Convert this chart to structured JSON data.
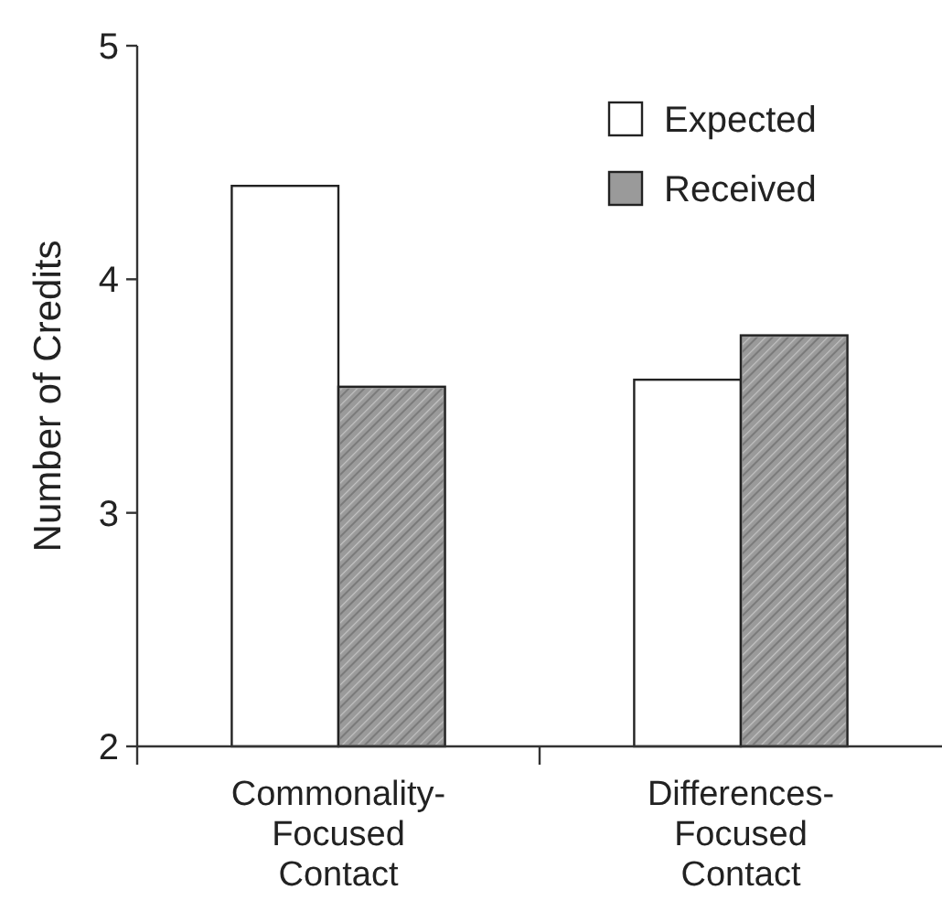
{
  "chart_data": {
    "type": "bar",
    "ylabel": "Number of Credits",
    "categories": [
      "Commonality-Focused Contact",
      "Differences-Focused Contact"
    ],
    "series": [
      {
        "name": "Expected",
        "color": "#ffffff",
        "values": [
          4.4,
          3.57
        ]
      },
      {
        "name": "Received",
        "color": "#9a9a9a",
        "values": [
          3.54,
          3.76
        ]
      }
    ],
    "ylim": [
      2,
      5
    ],
    "yticks": [
      2,
      3,
      4,
      5
    ],
    "grid": false,
    "legend": "top right"
  }
}
